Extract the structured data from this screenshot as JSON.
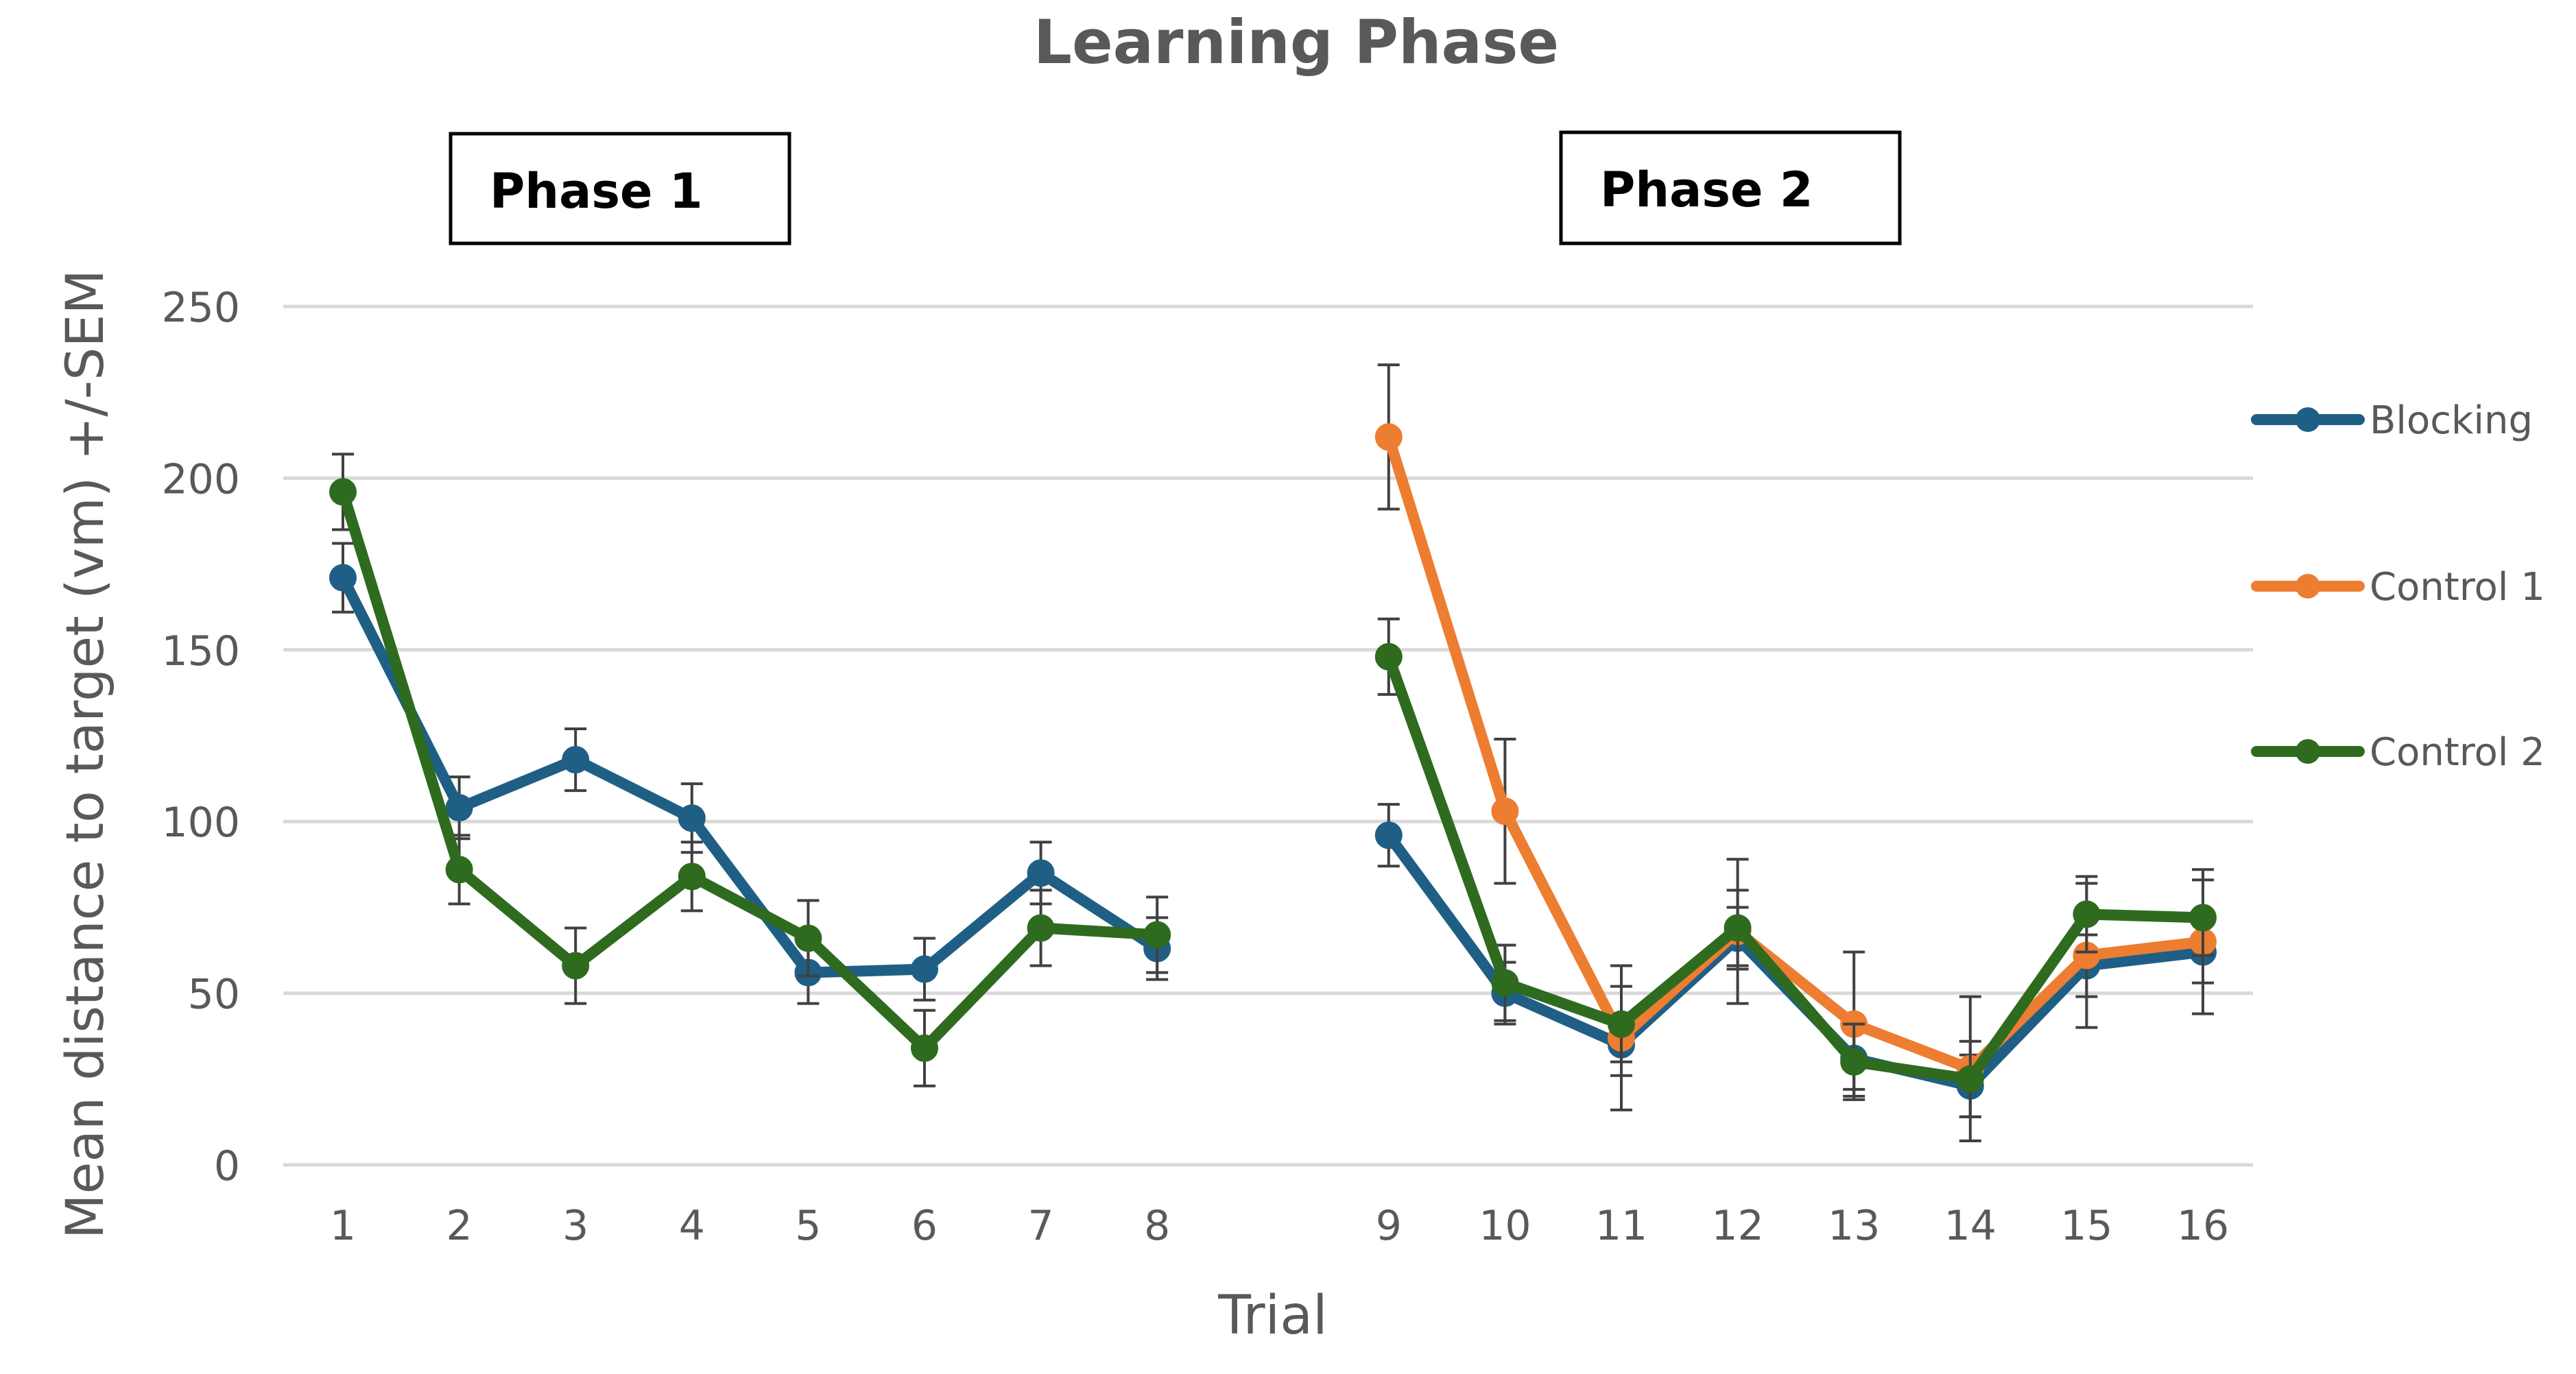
{
  "chart_data": {
    "type": "line",
    "title": "Learning Phase",
    "xlabel": "Trial",
    "ylabel": "Mean distance to target (vm) +/-SEM",
    "ylim": [
      0,
      250
    ],
    "yticks": [
      0,
      50,
      100,
      150,
      200,
      250
    ],
    "grid": true,
    "legend_position": "right",
    "categories": [
      "1",
      "2",
      "3",
      "4",
      "5",
      "6",
      "7",
      "8",
      "9",
      "10",
      "11",
      "12",
      "13",
      "14",
      "15",
      "16"
    ],
    "annotations": [
      {
        "id": "phase1",
        "text": "Phase 1"
      },
      {
        "id": "phase2",
        "text": "Phase 2"
      }
    ],
    "series": [
      {
        "name": "Blocking",
        "color": "#1f5f86",
        "values": [
          171,
          104,
          118,
          101,
          56,
          57,
          85,
          63,
          96,
          50,
          35,
          66,
          31,
          23,
          58,
          62
        ],
        "errors": [
          10,
          9,
          9,
          10,
          9,
          9,
          9,
          9,
          9,
          9,
          9,
          9,
          9,
          9,
          9,
          9
        ]
      },
      {
        "name": "Control 1",
        "color": "#ed7d31",
        "values": [
          null,
          null,
          null,
          null,
          null,
          null,
          null,
          null,
          212,
          103,
          37,
          68,
          41,
          28,
          61,
          65
        ],
        "errors": [
          null,
          null,
          null,
          null,
          null,
          null,
          null,
          null,
          21,
          21,
          21,
          21,
          21,
          21,
          21,
          21
        ]
      },
      {
        "name": "Control 2",
        "color": "#2e6b1f",
        "values": [
          196,
          86,
          58,
          84,
          66,
          34,
          69,
          67,
          148,
          53,
          41,
          69,
          30,
          25,
          73,
          72
        ],
        "errors": [
          11,
          10,
          11,
          10,
          11,
          11,
          11,
          11,
          11,
          11,
          11,
          11,
          11,
          11,
          11,
          11
        ]
      }
    ]
  }
}
